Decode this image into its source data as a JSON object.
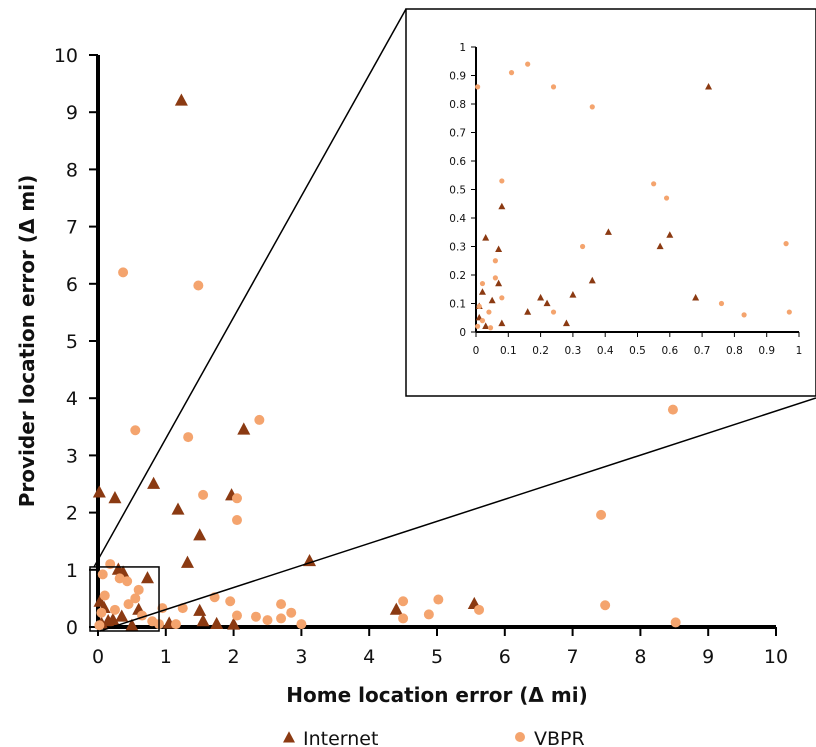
{
  "chart_data": [
    {
      "type": "scatter",
      "xlabel": "Home location error (Δ mi)",
      "ylabel": "Provider location error (Δ mi)",
      "xlim": [
        0,
        10
      ],
      "ylim": [
        0,
        10
      ],
      "x_ticks": [
        "0",
        "1",
        "2",
        "3",
        "4",
        "5",
        "6",
        "7",
        "8",
        "9",
        "10"
      ],
      "y_ticks": [
        "0",
        "1",
        "2",
        "3",
        "4",
        "5",
        "6",
        "7",
        "8",
        "9",
        "10"
      ],
      "grid": false,
      "legend": "bottom",
      "series": [
        {
          "name": "Internet",
          "marker": "triangle",
          "color": "#8B3A12",
          "points": [
            [
              1.23,
              9.2
            ],
            [
              2.15,
              3.45
            ],
            [
              0.82,
              2.5
            ],
            [
              0.02,
              2.35
            ],
            [
              0.25,
              2.25
            ],
            [
              1.97,
              2.3
            ],
            [
              1.18,
              2.05
            ],
            [
              1.5,
              1.6
            ],
            [
              1.32,
              1.12
            ],
            [
              3.12,
              1.15
            ],
            [
              0.03,
              0.44
            ],
            [
              0.09,
              0.33
            ],
            [
              0.3,
              1.0
            ],
            [
              0.37,
              0.95
            ],
            [
              0.73,
              0.85
            ],
            [
              0.6,
              0.3
            ],
            [
              0.35,
              0.18
            ],
            [
              0.15,
              0.1
            ],
            [
              0.22,
              0.12
            ],
            [
              0.05,
              0.06
            ],
            [
              1.5,
              0.28
            ],
            [
              1.55,
              0.1
            ],
            [
              1.75,
              0.05
            ],
            [
              2.0,
              0.04
            ],
            [
              4.4,
              0.3
            ],
            [
              5.55,
              0.4
            ],
            [
              1.05,
              0.06
            ],
            [
              0.5,
              0.02
            ]
          ]
        },
        {
          "name": "VBPR",
          "marker": "circle",
          "color": "#F4A46E",
          "points": [
            [
              0.37,
              6.2
            ],
            [
              1.48,
              5.97
            ],
            [
              0.55,
              3.44
            ],
            [
              2.38,
              3.62
            ],
            [
              1.33,
              3.32
            ],
            [
              1.55,
              2.31
            ],
            [
              2.05,
              2.25
            ],
            [
              2.05,
              1.87
            ],
            [
              8.48,
              3.8
            ],
            [
              7.42,
              1.96
            ],
            [
              0.07,
              0.92
            ],
            [
              0.18,
              1.1
            ],
            [
              0.32,
              0.85
            ],
            [
              0.43,
              0.8
            ],
            [
              0.1,
              0.55
            ],
            [
              0.55,
              0.5
            ],
            [
              0.65,
              0.2
            ],
            [
              0.95,
              0.33
            ],
            [
              1.25,
              0.33
            ],
            [
              1.72,
              0.52
            ],
            [
              1.95,
              0.45
            ],
            [
              2.05,
              0.2
            ],
            [
              2.33,
              0.18
            ],
            [
              2.5,
              0.12
            ],
            [
              2.7,
              0.15
            ],
            [
              2.7,
              0.4
            ],
            [
              2.85,
              0.25
            ],
            [
              3.0,
              0.05
            ],
            [
              4.5,
              0.45
            ],
            [
              4.5,
              0.15
            ],
            [
              5.02,
              0.48
            ],
            [
              4.88,
              0.22
            ],
            [
              5.62,
              0.3
            ],
            [
              7.48,
              0.38
            ],
            [
              8.52,
              0.08
            ],
            [
              0.8,
              0.1
            ],
            [
              0.9,
              0.05
            ],
            [
              1.15,
              0.05
            ],
            [
              0.02,
              0.03
            ],
            [
              0.05,
              0.25
            ],
            [
              0.25,
              0.3
            ],
            [
              0.45,
              0.4
            ],
            [
              0.6,
              0.65
            ]
          ]
        }
      ]
    },
    {
      "type": "scatter",
      "xlim": [
        0,
        1
      ],
      "ylim": [
        0,
        1
      ],
      "x_ticks": [
        "0",
        "0.1",
        "0.2",
        "0.3",
        "0.4",
        "0.5",
        "0.6",
        "0.7",
        "0.8",
        "0.9",
        "1"
      ],
      "y_ticks": [
        "0",
        "0.1",
        "0.2",
        "0.3",
        "0.4",
        "0.5",
        "0.6",
        "0.7",
        "0.8",
        "0.9",
        "1"
      ],
      "grid": false,
      "series": [
        {
          "name": "Internet",
          "marker": "triangle",
          "color": "#8B3A12",
          "points": [
            [
              0.72,
              0.86
            ],
            [
              0.08,
              0.44
            ],
            [
              0.03,
              0.33
            ],
            [
              0.41,
              0.35
            ],
            [
              0.6,
              0.34
            ],
            [
              0.57,
              0.3
            ],
            [
              0.07,
              0.29
            ],
            [
              0.36,
              0.18
            ],
            [
              0.07,
              0.17
            ],
            [
              0.02,
              0.14
            ],
            [
              0.05,
              0.11
            ],
            [
              0.2,
              0.12
            ],
            [
              0.22,
              0.1
            ],
            [
              0.3,
              0.13
            ],
            [
              0.68,
              0.12
            ],
            [
              0.16,
              0.07
            ],
            [
              0.08,
              0.03
            ],
            [
              0.28,
              0.03
            ],
            [
              0.01,
              0.05
            ],
            [
              0.01,
              0.09
            ],
            [
              0.03,
              0.02
            ]
          ]
        },
        {
          "name": "VBPR",
          "marker": "circle",
          "color": "#F4A46E",
          "points": [
            [
              0.005,
              0.86
            ],
            [
              0.11,
              0.91
            ],
            [
              0.16,
              0.94
            ],
            [
              0.24,
              0.86
            ],
            [
              0.36,
              0.79
            ],
            [
              0.08,
              0.53
            ],
            [
              0.55,
              0.52
            ],
            [
              0.59,
              0.47
            ],
            [
              0.33,
              0.3
            ],
            [
              0.96,
              0.31
            ],
            [
              0.06,
              0.25
            ],
            [
              0.06,
              0.19
            ],
            [
              0.02,
              0.17
            ],
            [
              0.08,
              0.12
            ],
            [
              0.04,
              0.07
            ],
            [
              0.01,
              0.09
            ],
            [
              0.24,
              0.07
            ],
            [
              0.76,
              0.1
            ],
            [
              0.83,
              0.06
            ],
            [
              0.97,
              0.07
            ],
            [
              0.02,
              0.04
            ],
            [
              0.005,
              0.02
            ],
            [
              0.045,
              0.015
            ]
          ]
        }
      ]
    }
  ]
}
